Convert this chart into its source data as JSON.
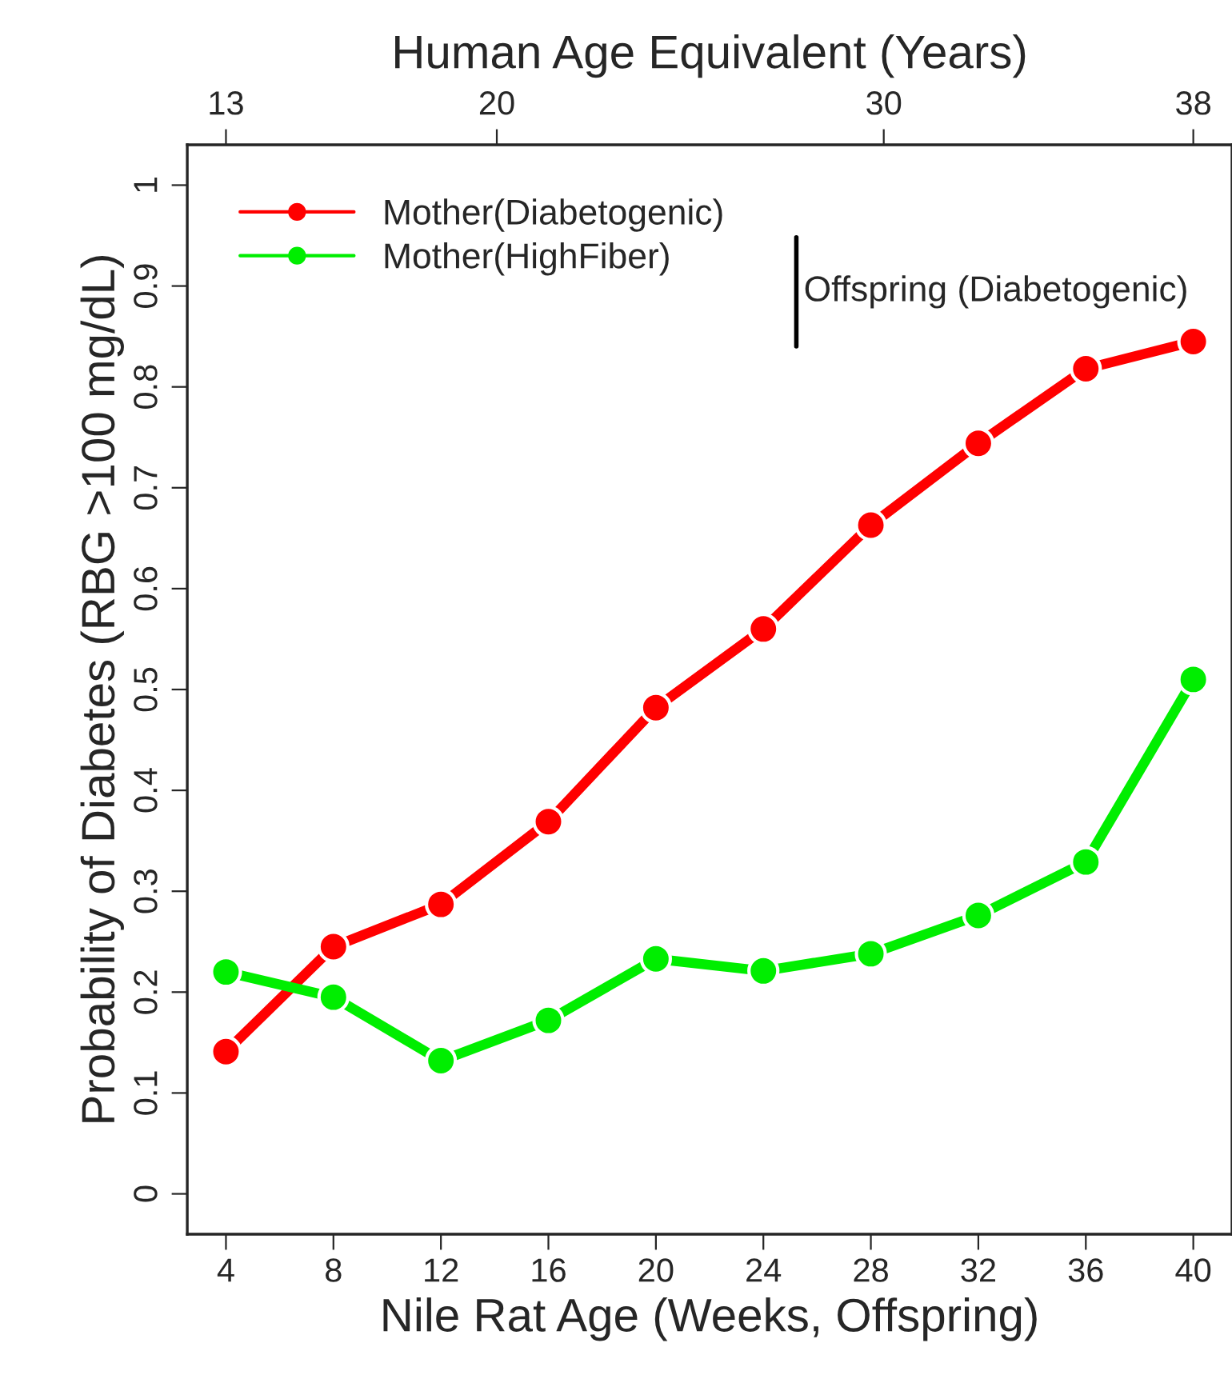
{
  "chart_data": {
    "type": "line",
    "xlabel": "Nile Rat Age (Weeks, Offspring)",
    "ylabel": "Probability of Diabetes (RBG >100 mg/dL)",
    "x2label": "Human Age Equivalent (Years)",
    "x": [
      4,
      8,
      12,
      16,
      20,
      24,
      28,
      32,
      36,
      40
    ],
    "series": [
      {
        "name": "Mother(Diabetogenic)",
        "color": "#ff0000",
        "values": [
          0.141,
          0.245,
          0.287,
          0.369,
          0.482,
          0.56,
          0.663,
          0.744,
          0.818,
          0.845
        ]
      },
      {
        "name": "Mother(HighFiber)",
        "color": "#00ee00",
        "values": [
          0.22,
          0.195,
          0.132,
          0.172,
          0.233,
          0.221,
          0.238,
          0.276,
          0.329,
          0.51
        ]
      }
    ],
    "xlim": [
      2.56,
      41.44
    ],
    "xticks": [
      4,
      8,
      12,
      16,
      20,
      24,
      28,
      32,
      36,
      40
    ],
    "x2lim": [
      12,
      39
    ],
    "x2ticks": [
      13,
      20,
      30,
      38
    ],
    "ylim": [
      -0.04,
      1.04
    ],
    "yticks": [
      0,
      0.1,
      0.2,
      0.3,
      0.4,
      0.5,
      0.6,
      0.7,
      0.8,
      0.9,
      1
    ],
    "annotations": [
      "Offspring (Diabetogenic)"
    ],
    "legend": "top left",
    "grid": false,
    "marker": "circle",
    "line_style": "solid"
  }
}
